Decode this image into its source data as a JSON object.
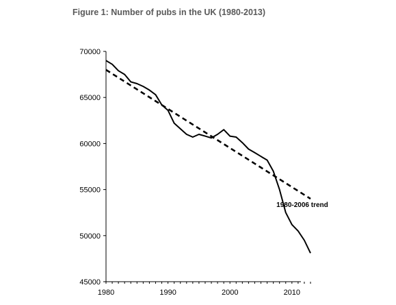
{
  "chart_data": {
    "type": "line",
    "title": "Figure 1: Number of pubs in the UK (1980-2013)",
    "xlabel": "",
    "ylabel": "",
    "xlim": [
      1980,
      2013
    ],
    "ylim": [
      45000,
      70000
    ],
    "x_ticks": [
      1980,
      1990,
      2000,
      2010
    ],
    "y_ticks": [
      45000,
      50000,
      55000,
      60000,
      65000,
      70000
    ],
    "grid": false,
    "series": [
      {
        "style": "solid",
        "x": [
          1980,
          1981,
          1982,
          1983,
          1984,
          1985,
          1986,
          1987,
          1988,
          1989,
          1990,
          1991,
          1992,
          1993,
          1994,
          1995,
          1996,
          1997,
          1998,
          1999,
          2000,
          2001,
          2002,
          2003,
          2004,
          2005,
          2006,
          2007,
          2008,
          2009,
          2010,
          2011,
          2012,
          2013
        ],
        "values": [
          69000,
          68600,
          67900,
          67500,
          66700,
          66500,
          66200,
          65800,
          65300,
          64200,
          63600,
          62200,
          61600,
          61000,
          60700,
          61000,
          60800,
          60600,
          61000,
          61500,
          60800,
          60700,
          60100,
          59400,
          59000,
          58600,
          58200,
          57000,
          55000,
          52500,
          51200,
          50500,
          49500,
          48100
        ]
      },
      {
        "style": "dashed",
        "x": [
          1980,
          2013
        ],
        "values": [
          68000,
          54000
        ]
      }
    ],
    "annotations": [
      {
        "text": "1980-2006 trend",
        "x": 2007.5,
        "y": 53400
      }
    ]
  }
}
